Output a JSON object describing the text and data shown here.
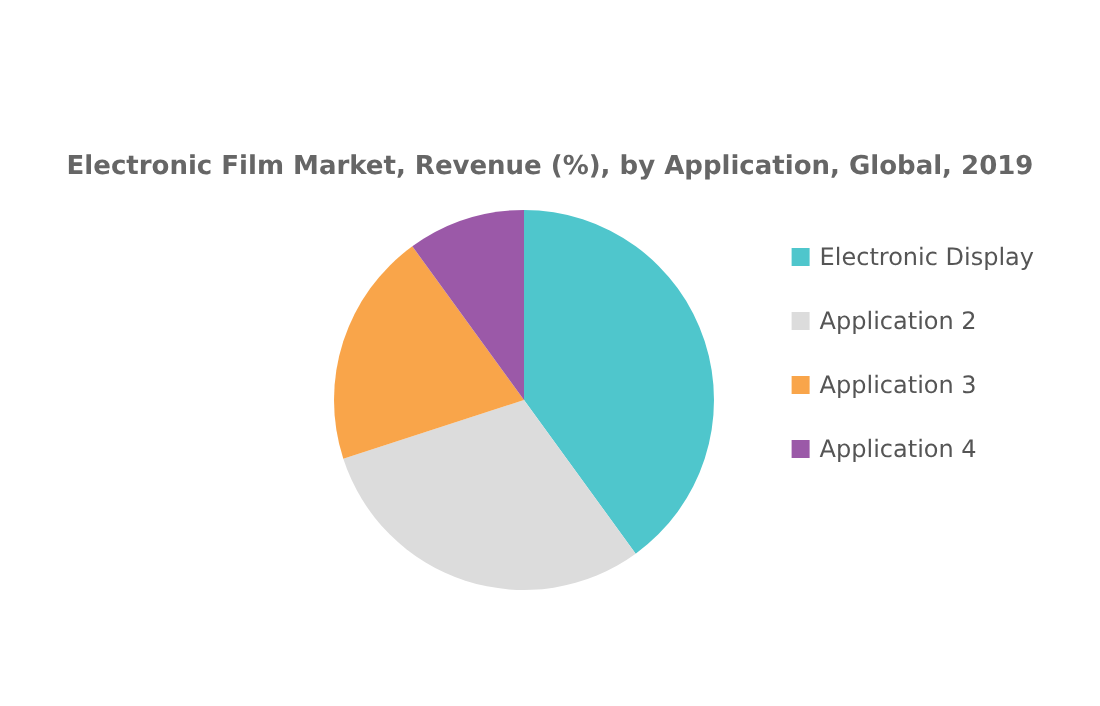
{
  "chart_data": {
    "type": "pie",
    "title": "Electronic Film Market, Revenue (%), by Application, Global, 2019",
    "categories": [
      "Electronic Display",
      "Application 2",
      "Application 3",
      "Application 4"
    ],
    "values": [
      40,
      30,
      20,
      10
    ],
    "colors": [
      "#4fc6cc",
      "#dcdcdc",
      "#f9a54a",
      "#9b59a8"
    ],
    "legend": "right"
  }
}
